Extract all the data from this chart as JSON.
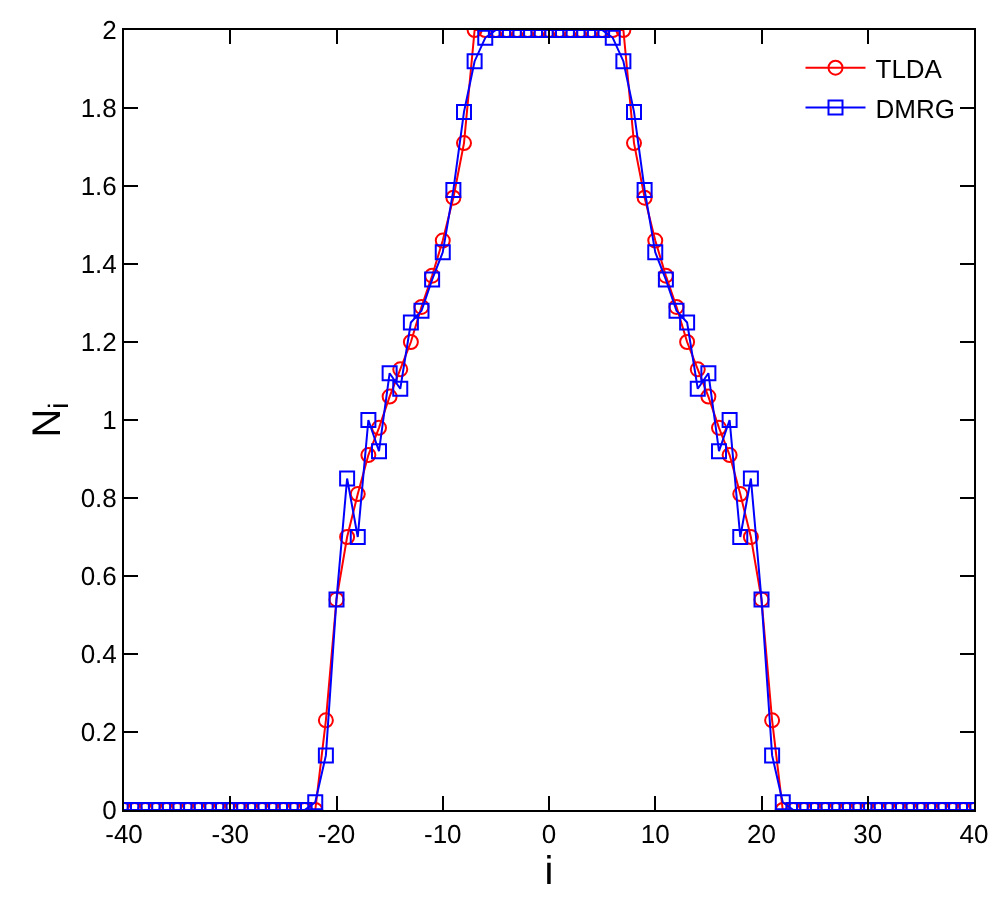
{
  "chart_data": {
    "type": "line",
    "xlabel": "i",
    "ylabel": "N$_{i}$",
    "x": [
      -40,
      -39,
      -38,
      -37,
      -36,
      -35,
      -34,
      -33,
      -32,
      -31,
      -30,
      -29,
      -28,
      -27,
      -26,
      -25,
      -24,
      -23,
      -22,
      -21,
      -20,
      -19,
      -18,
      -17,
      -16,
      -15,
      -14,
      -13,
      -12,
      -11,
      -10,
      -9,
      -8,
      -7,
      -6,
      -5,
      -4,
      -3,
      -2,
      -1,
      0,
      1,
      2,
      3,
      4,
      5,
      6,
      7,
      8,
      9,
      10,
      11,
      12,
      13,
      14,
      15,
      16,
      17,
      18,
      19,
      20,
      21,
      22,
      23,
      24,
      25,
      26,
      27,
      28,
      29,
      30,
      31,
      32,
      33,
      34,
      35,
      36,
      37,
      38,
      39,
      40
    ],
    "series": [
      {
        "name": "TLDA",
        "color": "#ff0000",
        "marker": "circle",
        "values": [
          0,
          0,
          0,
          0,
          0,
          0,
          0,
          0,
          0,
          0,
          0,
          0,
          0,
          0,
          0,
          0,
          0,
          0,
          0,
          0.23,
          0.54,
          0.7,
          0.81,
          0.91,
          0.98,
          1.06,
          1.13,
          1.2,
          1.29,
          1.37,
          1.46,
          1.57,
          1.71,
          2,
          2,
          2,
          2,
          2,
          2,
          2,
          2,
          2,
          2,
          2,
          2,
          2,
          2,
          2,
          1.71,
          1.57,
          1.46,
          1.37,
          1.29,
          1.2,
          1.13,
          1.06,
          0.98,
          0.91,
          0.81,
          0.7,
          0.54,
          0.23,
          0,
          0,
          0,
          0,
          0,
          0,
          0,
          0,
          0,
          0,
          0,
          0,
          0,
          0,
          0,
          0,
          0,
          0,
          0
        ]
      },
      {
        "name": "DMRG",
        "color": "#0000ff",
        "marker": "square",
        "values": [
          0,
          0,
          0,
          0,
          0,
          0,
          0,
          0,
          0,
          0,
          0,
          0,
          0,
          0,
          0,
          0,
          0,
          0,
          0.02,
          0.14,
          0.54,
          0.85,
          0.7,
          1.0,
          0.92,
          1.12,
          1.08,
          1.25,
          1.28,
          1.36,
          1.43,
          1.59,
          1.79,
          1.92,
          1.98,
          2,
          2,
          2,
          2,
          2,
          2,
          2,
          2,
          2,
          2,
          2,
          1.98,
          1.92,
          1.79,
          1.59,
          1.43,
          1.36,
          1.28,
          1.25,
          1.08,
          1.12,
          0.92,
          1.0,
          0.7,
          0.85,
          0.54,
          0.14,
          0.02,
          0,
          0,
          0,
          0,
          0,
          0,
          0,
          0,
          0,
          0,
          0,
          0,
          0,
          0,
          0,
          0,
          0,
          0
        ]
      }
    ],
    "xlim": [
      -40,
      40
    ],
    "xticks": [
      -40,
      -30,
      -20,
      -10,
      0,
      10,
      20,
      30,
      40
    ],
    "ylim": [
      0,
      2
    ],
    "yticks": [
      0,
      0.2,
      0.4,
      0.6,
      0.8,
      1,
      1.2,
      1.4,
      1.6,
      1.8,
      2
    ],
    "legend": "top right",
    "grid": false
  }
}
